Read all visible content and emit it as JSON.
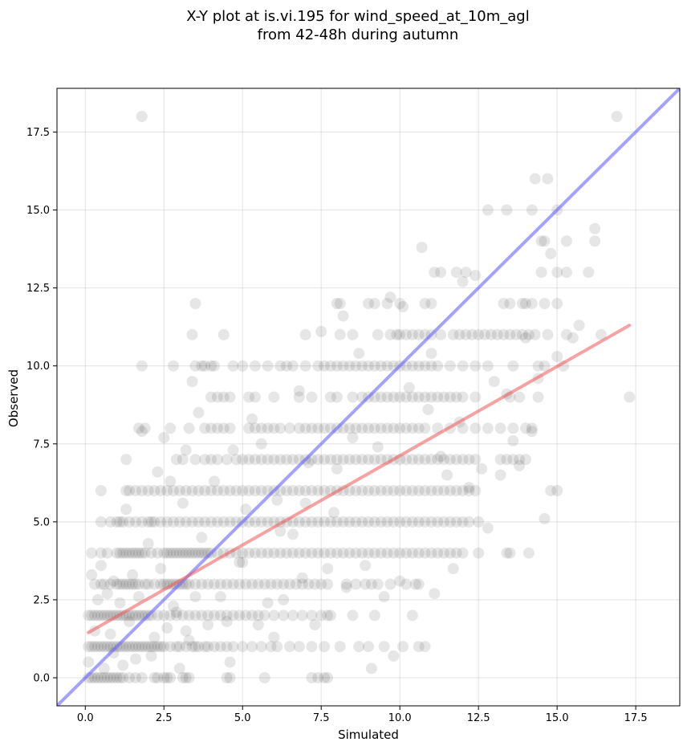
{
  "chart_data": {
    "type": "scatter",
    "title_line1": "X-Y plot at is.vi.195 for wind_speed_at_10m_agl",
    "title_line2": "from 42-48h during autumn",
    "xlabel": "Simulated",
    "ylabel": "Observed",
    "xlim": [
      -0.9,
      18.9
    ],
    "ylim": [
      -0.9,
      18.9
    ],
    "xticks": [
      0.0,
      2.5,
      5.0,
      7.5,
      10.0,
      12.5,
      15.0,
      17.5
    ],
    "yticks": [
      0.0,
      2.5,
      5.0,
      7.5,
      10.0,
      12.5,
      15.0,
      17.5
    ],
    "xtick_labels": [
      "0.0",
      "2.5",
      "5.0",
      "7.5",
      "10.0",
      "12.5",
      "15.0",
      "17.5"
    ],
    "ytick_labels": [
      "0.0",
      "2.5",
      "5.0",
      "7.5",
      "10.0",
      "12.5",
      "15.0",
      "17.5"
    ],
    "grid": true,
    "colors": {
      "points": "#333333",
      "identity_line": "#6666ff",
      "fit_line": "#ee5555"
    },
    "identity_line": {
      "from": [
        -0.9,
        -0.9
      ],
      "to": [
        18.9,
        18.9
      ]
    },
    "fit_line": {
      "from": [
        0.1,
        1.45
      ],
      "to": [
        17.3,
        11.3
      ]
    },
    "point_rows": [
      {
        "y": 0,
        "x": [
          0.1,
          0.2,
          0.3,
          0.4,
          0.5,
          0.6,
          0.7,
          0.8,
          0.9,
          1.0,
          1.1,
          1.2,
          1.4,
          1.6,
          1.8,
          2.2,
          2.3,
          2.5,
          2.6,
          2.7,
          3.1,
          3.2,
          3.3,
          4.5,
          4.6,
          5.7,
          7.2,
          7.4,
          7.6,
          7.7
        ]
      },
      {
        "y": 1,
        "x": [
          0.1,
          0.2,
          0.3,
          0.4,
          0.5,
          0.6,
          0.7,
          0.8,
          0.9,
          1.0,
          1.1,
          1.2,
          1.3,
          1.4,
          1.5,
          1.6,
          1.7,
          1.8,
          1.9,
          2.0,
          2.1,
          2.2,
          2.3,
          2.4,
          2.5,
          2.7,
          2.9,
          3.0,
          3.2,
          3.4,
          3.5,
          3.6,
          3.8,
          3.9,
          4.1,
          4.3,
          4.5,
          4.7,
          5.0,
          5.3,
          5.6,
          5.9,
          6.1,
          6.5,
          6.8,
          7.2,
          7.6,
          8.1,
          8.7,
          9.0,
          9.5,
          10.1,
          10.6,
          10.8
        ]
      },
      {
        "y": 2,
        "x": [
          0.1,
          0.2,
          0.3,
          0.4,
          0.5,
          0.6,
          0.7,
          0.8,
          0.9,
          1.0,
          1.1,
          1.2,
          1.3,
          1.4,
          1.5,
          1.6,
          1.7,
          1.8,
          1.9,
          2.0,
          2.1,
          2.3,
          2.5,
          2.7,
          2.9,
          3.1,
          3.3,
          3.5,
          3.7,
          3.9,
          4.1,
          4.3,
          4.5,
          4.7,
          4.9,
          5.1,
          5.3,
          5.5,
          5.7,
          6.0,
          6.3,
          6.6,
          6.9,
          7.2,
          7.5,
          7.7,
          7.8,
          8.5,
          9.2,
          10.4
        ]
      },
      {
        "y": 3,
        "x": [
          0.3,
          0.5,
          0.6,
          0.8,
          1.0,
          1.1,
          1.2,
          1.3,
          1.4,
          1.5,
          1.6,
          1.7,
          1.9,
          2.0,
          2.2,
          2.4,
          2.5,
          2.6,
          2.7,
          2.8,
          2.9,
          3.0,
          3.1,
          3.2,
          3.3,
          3.5,
          3.7,
          3.9,
          4.1,
          4.3,
          4.5,
          4.7,
          4.9,
          5.1,
          5.3,
          5.5,
          5.7,
          5.9,
          6.1,
          6.3,
          6.5,
          6.7,
          6.9,
          7.1,
          7.3,
          7.5,
          7.7,
          8.3,
          8.6,
          8.9,
          9.1,
          9.3,
          9.7,
          10.2,
          10.6
        ]
      },
      {
        "y": 4,
        "x": [
          0.2,
          0.5,
          0.7,
          1.0,
          1.1,
          1.2,
          1.3,
          1.4,
          1.5,
          1.6,
          1.7,
          1.8,
          1.9,
          2.1,
          2.3,
          2.5,
          2.6,
          2.7,
          2.8,
          2.9,
          3.0,
          3.1,
          3.2,
          3.3,
          3.4,
          3.5,
          3.6,
          3.7,
          3.8,
          3.9,
          4.0,
          4.2,
          4.4,
          4.6,
          4.8,
          5.0,
          5.2,
          5.4,
          5.6,
          5.8,
          6.0,
          6.2,
          6.4,
          6.6,
          6.8,
          7.0,
          7.2,
          7.4,
          7.6,
          7.8,
          8.0,
          8.2,
          8.4,
          8.6,
          8.8,
          9.0,
          9.2,
          9.4,
          9.6,
          9.8,
          10.0,
          10.2,
          10.4,
          10.6,
          10.8,
          11.0,
          11.2,
          11.4,
          11.6,
          11.8,
          12.0,
          12.5,
          13.4,
          13.5,
          14.1
        ]
      },
      {
        "y": 5,
        "x": [
          0.5,
          0.8,
          1.0,
          1.1,
          1.2,
          1.4,
          1.6,
          1.8,
          2.0,
          2.1,
          2.2,
          2.4,
          2.6,
          2.8,
          3.0,
          3.2,
          3.4,
          3.6,
          3.8,
          4.0,
          4.2,
          4.4,
          4.6,
          4.8,
          5.0,
          5.2,
          5.4,
          5.6,
          5.8,
          6.0,
          6.2,
          6.4,
          6.6,
          6.8,
          7.0,
          7.2,
          7.4,
          7.6,
          7.8,
          8.0,
          8.2,
          8.4,
          8.6,
          8.8,
          9.0,
          9.2,
          9.4,
          9.6,
          9.8,
          10.0,
          10.2,
          10.4,
          10.6,
          10.8,
          11.0,
          11.2,
          11.4,
          11.6,
          11.8,
          12.0,
          12.2,
          12.5
        ]
      },
      {
        "y": 6,
        "x": [
          0.5,
          1.3,
          1.4,
          1.6,
          1.8,
          2.0,
          2.2,
          2.4,
          2.6,
          2.8,
          3.0,
          3.2,
          3.4,
          3.6,
          3.8,
          4.0,
          4.2,
          4.4,
          4.6,
          4.8,
          5.0,
          5.2,
          5.4,
          5.6,
          5.8,
          6.0,
          6.2,
          6.4,
          6.6,
          6.8,
          7.0,
          7.2,
          7.4,
          7.6,
          7.8,
          8.0,
          8.2,
          8.4,
          8.6,
          8.8,
          9.0,
          9.2,
          9.4,
          9.6,
          9.8,
          10.0,
          10.2,
          10.4,
          10.6,
          10.8,
          11.0,
          11.2,
          11.4,
          11.6,
          11.8,
          12.0,
          12.2,
          12.4,
          14.8,
          15.0
        ]
      },
      {
        "y": 7,
        "x": [
          1.3,
          2.9,
          3.1,
          3.5,
          3.8,
          4.0,
          4.2,
          4.5,
          4.8,
          5.0,
          5.2,
          5.4,
          5.6,
          5.8,
          6.0,
          6.2,
          6.4,
          6.6,
          6.8,
          7.0,
          7.2,
          7.4,
          7.6,
          7.8,
          8.0,
          8.2,
          8.4,
          8.6,
          8.8,
          9.0,
          9.2,
          9.4,
          9.6,
          9.8,
          10.0,
          10.2,
          10.4,
          10.6,
          10.8,
          11.0,
          11.2,
          11.4,
          11.6,
          11.8,
          12.0,
          12.2,
          12.4,
          13.2,
          13.4,
          13.6,
          13.8,
          14.0
        ]
      },
      {
        "y": 8,
        "x": [
          1.7,
          1.9,
          2.7,
          3.3,
          3.8,
          4.0,
          4.2,
          4.4,
          4.6,
          5.2,
          5.4,
          5.6,
          5.8,
          6.0,
          6.2,
          6.5,
          6.8,
          7.0,
          7.2,
          7.4,
          7.6,
          7.8,
          8.0,
          8.2,
          8.4,
          8.6,
          8.8,
          9.0,
          9.2,
          9.4,
          9.6,
          9.8,
          10.0,
          10.2,
          10.4,
          10.6,
          10.8,
          11.2,
          11.6,
          12.0,
          12.4,
          12.8,
          13.2,
          13.6,
          14.0,
          14.2
        ]
      },
      {
        "y": 9,
        "x": [
          4.0,
          4.2,
          4.4,
          4.6,
          5.2,
          5.4,
          6.0,
          6.8,
          7.2,
          7.8,
          8.0,
          8.5,
          8.8,
          9.0,
          9.2,
          9.4,
          9.6,
          9.8,
          10.0,
          10.2,
          10.4,
          10.6,
          10.8,
          11.0,
          11.2,
          11.4,
          11.6,
          11.8,
          12.0,
          12.4,
          13.5,
          13.8,
          14.4
        ]
      },
      {
        "y": 10,
        "x": [
          1.8,
          2.8,
          3.5,
          3.7,
          3.8,
          4.0,
          4.1,
          4.7,
          5.0,
          5.4,
          5.8,
          6.2,
          6.6,
          7.0,
          7.4,
          7.6,
          7.8,
          8.0,
          8.2,
          8.4,
          8.6,
          8.8,
          9.0,
          9.2,
          9.4,
          9.6,
          9.8,
          10.0,
          10.2,
          10.4,
          10.6,
          10.8,
          11.0,
          11.2,
          11.6,
          12.0,
          12.4,
          12.8,
          13.6,
          14.4,
          14.6,
          15.2
        ]
      },
      {
        "y": 11,
        "x": [
          3.4,
          7.0,
          8.1,
          8.5,
          9.3,
          9.7,
          9.9,
          10.0,
          10.2,
          10.4,
          10.6,
          10.8,
          11.0,
          11.3,
          11.7,
          11.9,
          12.1,
          12.3,
          12.5,
          12.7,
          12.9,
          13.1,
          13.3,
          13.5,
          13.7,
          13.9,
          14.1,
          14.3,
          14.7,
          15.3,
          16.4
        ]
      },
      {
        "y": 12,
        "x": [
          3.5,
          8.0,
          9.2,
          9.6,
          10.0,
          10.8,
          11.0,
          13.3,
          13.5,
          13.9,
          14.0,
          14.2,
          14.6,
          15.0
        ]
      },
      {
        "y": 13,
        "x": [
          11.1,
          11.3,
          11.8,
          12.1,
          14.5,
          15.0,
          15.3,
          16.0
        ]
      },
      {
        "y": 14,
        "x": [
          14.5,
          14.6,
          15.3,
          16.2
        ]
      },
      {
        "y": 15,
        "x": [
          12.8,
          13.4,
          14.2,
          15.0
        ]
      },
      {
        "y": 16,
        "x": [
          14.3,
          14.7
        ]
      },
      {
        "y": 18,
        "x": [
          1.8,
          16.9
        ]
      }
    ],
    "scattered_points": [
      [
        0.1,
        0.5
      ],
      [
        0.2,
        3.3
      ],
      [
        0.3,
        1.5
      ],
      [
        0.4,
        2.5
      ],
      [
        0.5,
        3.6
      ],
      [
        0.6,
        0.3
      ],
      [
        0.7,
        2.7
      ],
      [
        0.8,
        1.4
      ],
      [
        0.9,
        0.8
      ],
      [
        1.1,
        2.4
      ],
      [
        1.2,
        0.4
      ],
      [
        1.3,
        5.4
      ],
      [
        1.5,
        3.3
      ],
      [
        1.6,
        0.6
      ],
      [
        1.7,
        2.6
      ],
      [
        1.8,
        7.9
      ],
      [
        2.0,
        4.3
      ],
      [
        2.1,
        0.7
      ],
      [
        2.2,
        1.3
      ],
      [
        2.3,
        6.6
      ],
      [
        2.4,
        3.5
      ],
      [
        2.5,
        7.7
      ],
      [
        2.6,
        1.6
      ],
      [
        2.7,
        6.3
      ],
      [
        2.8,
        2.3
      ],
      [
        3.0,
        0.3
      ],
      [
        3.1,
        5.6
      ],
      [
        3.2,
        7.3
      ],
      [
        3.3,
        1.2
      ],
      [
        3.4,
        9.5
      ],
      [
        3.5,
        2.6
      ],
      [
        3.6,
        8.5
      ],
      [
        3.7,
        4.5
      ],
      [
        3.9,
        1.7
      ],
      [
        4.1,
        6.3
      ],
      [
        4.3,
        2.6
      ],
      [
        4.4,
        11.0
      ],
      [
        4.6,
        0.5
      ],
      [
        4.7,
        7.3
      ],
      [
        4.9,
        3.7
      ],
      [
        5.1,
        5.4
      ],
      [
        5.3,
        8.3
      ],
      [
        5.5,
        1.7
      ],
      [
        5.6,
        7.5
      ],
      [
        5.8,
        2.4
      ],
      [
        6.0,
        1.3
      ],
      [
        6.1,
        5.7
      ],
      [
        6.3,
        2.5
      ],
      [
        6.4,
        10.0
      ],
      [
        6.6,
        4.6
      ],
      [
        6.8,
        9.2
      ],
      [
        6.9,
        3.2
      ],
      [
        7.1,
        6.9
      ],
      [
        7.3,
        1.7
      ],
      [
        7.5,
        11.1
      ],
      [
        7.7,
        3.5
      ],
      [
        7.9,
        5.3
      ],
      [
        8.1,
        12.0
      ],
      [
        8.2,
        11.6
      ],
      [
        8.3,
        2.9
      ],
      [
        8.5,
        7.7
      ],
      [
        8.7,
        10.4
      ],
      [
        8.9,
        3.6
      ],
      [
        9.0,
        12.0
      ],
      [
        9.1,
        0.3
      ],
      [
        9.3,
        7.4
      ],
      [
        9.5,
        2.6
      ],
      [
        9.7,
        12.2
      ],
      [
        9.8,
        0.7
      ],
      [
        10.0,
        3.1
      ],
      [
        10.1,
        11.9
      ],
      [
        10.3,
        9.3
      ],
      [
        10.5,
        3.0
      ],
      [
        10.7,
        13.8
      ],
      [
        10.9,
        8.6
      ],
      [
        11.0,
        10.4
      ],
      [
        11.1,
        2.7
      ],
      [
        11.3,
        7.1
      ],
      [
        11.5,
        6.5
      ],
      [
        11.7,
        3.5
      ],
      [
        11.9,
        8.2
      ],
      [
        12.0,
        12.7
      ],
      [
        12.2,
        6.1
      ],
      [
        12.4,
        12.9
      ],
      [
        12.6,
        6.7
      ],
      [
        12.8,
        4.8
      ],
      [
        13.0,
        9.5
      ],
      [
        13.2,
        6.5
      ],
      [
        13.4,
        9.1
      ],
      [
        13.6,
        7.6
      ],
      [
        13.8,
        6.8
      ],
      [
        14.0,
        10.9
      ],
      [
        14.2,
        7.9
      ],
      [
        14.4,
        9.6
      ],
      [
        14.6,
        5.1
      ],
      [
        14.8,
        13.6
      ],
      [
        15.0,
        10.3
      ],
      [
        15.5,
        10.9
      ],
      [
        15.7,
        11.3
      ],
      [
        16.2,
        14.4
      ],
      [
        17.3,
        9.0
      ],
      [
        3.2,
        1.5
      ],
      [
        1.4,
        1.8
      ],
      [
        2.9,
        2.1
      ],
      [
        0.9,
        3.1
      ],
      [
        4.5,
        1.8
      ],
      [
        5.0,
        3.7
      ],
      [
        6.2,
        4.7
      ],
      [
        7.0,
        5.6
      ],
      [
        8.0,
        6.7
      ]
    ]
  }
}
